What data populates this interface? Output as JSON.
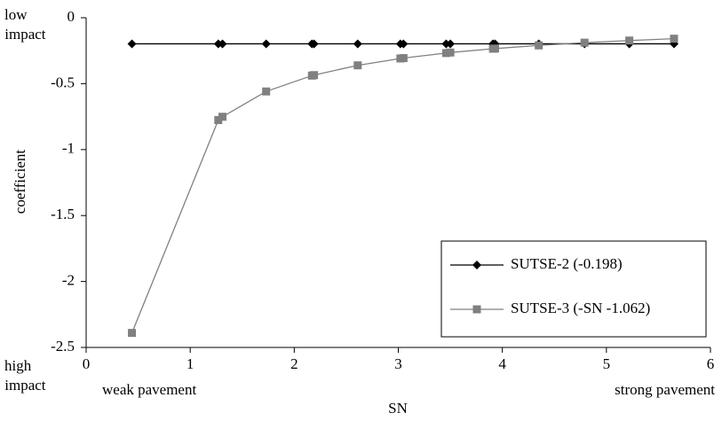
{
  "chart_data": {
    "type": "line",
    "y_label": "coefficient",
    "x_label": "SN",
    "top_annotation": "low impact",
    "bottom_annotation": "high impact",
    "left_annotation": "weak pavement",
    "right_annotation": "strong pavement",
    "xlim": [
      0,
      6
    ],
    "xticks": [
      0,
      1,
      2,
      3,
      4,
      5,
      6
    ],
    "ylim": [
      -2.5,
      0
    ],
    "yticks": [
      0,
      -0.5,
      -1,
      -1.5,
      -2,
      -2.5
    ],
    "x": [
      0.44,
      1.27,
      1.31,
      1.73,
      2.17,
      2.19,
      2.61,
      3.02,
      3.05,
      3.46,
      3.5,
      3.91,
      3.93,
      4.35,
      4.79,
      5.22,
      5.65
    ],
    "series": [
      {
        "name": "SUTSE-2 (-0.198)",
        "color": "#000000",
        "marker": "diamond",
        "values": [
          -0.198,
          -0.198,
          -0.198,
          -0.198,
          -0.198,
          -0.198,
          -0.198,
          -0.198,
          -0.198,
          -0.198,
          -0.198,
          -0.198,
          -0.198,
          -0.198,
          -0.198,
          -0.198,
          -0.198
        ]
      },
      {
        "name": "SUTSE-3 (-SN -1.062)",
        "color": "#808080",
        "marker": "square",
        "values": [
          -2.39,
          -0.776,
          -0.751,
          -0.559,
          -0.439,
          -0.435,
          -0.361,
          -0.309,
          -0.306,
          -0.268,
          -0.264,
          -0.235,
          -0.234,
          -0.21,
          -0.189,
          -0.173,
          -0.159
        ]
      }
    ]
  }
}
